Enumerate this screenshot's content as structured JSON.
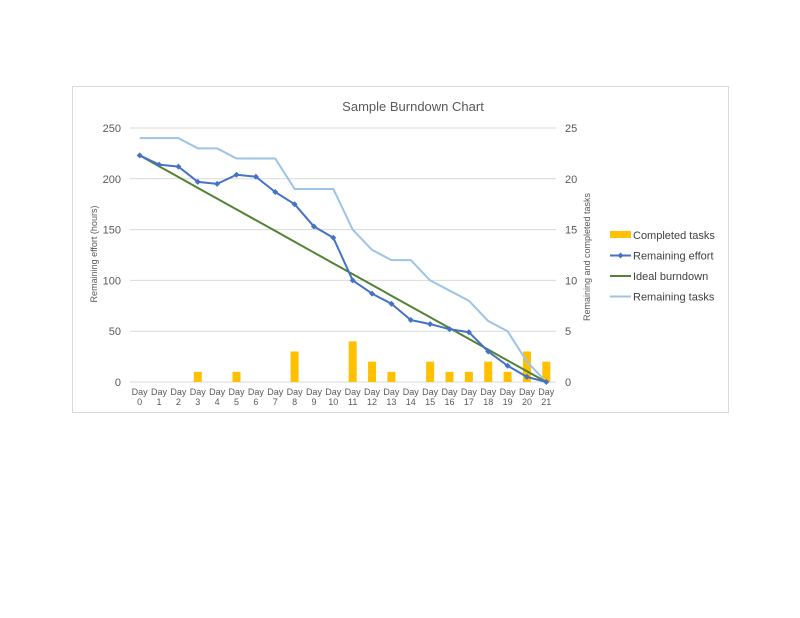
{
  "chart_data": {
    "type": "bar+line",
    "title": "Sample Burndown Chart",
    "categories": [
      "Day 0",
      "Day 1",
      "Day 2",
      "Day 3",
      "Day 4",
      "Day 5",
      "Day 6",
      "Day 7",
      "Day 8",
      "Day 9",
      "Day 10",
      "Day 11",
      "Day 12",
      "Day 13",
      "Day 14",
      "Day 15",
      "Day 16",
      "Day 17",
      "Day 18",
      "Day 19",
      "Day 20",
      "Day 21"
    ],
    "ylabel": "Remaining effort (hours)",
    "ylim": [
      0,
      250
    ],
    "yticks": [
      0,
      50,
      100,
      150,
      200,
      250
    ],
    "y2label": "Remaining and completed tasks",
    "y2lim": [
      0,
      25
    ],
    "y2ticks": [
      0,
      5,
      10,
      15,
      20,
      25
    ],
    "grid": true,
    "legend_position": "right",
    "series": [
      {
        "name": "Completed tasks",
        "type": "bar",
        "axis": "secondary",
        "color": "#ffc000",
        "values": [
          0,
          0,
          0,
          1,
          0,
          1,
          0,
          0,
          3,
          0,
          0,
          4,
          2,
          1,
          0,
          2,
          1,
          1,
          2,
          1,
          3,
          2
        ]
      },
      {
        "name": "Remaining effort",
        "type": "line",
        "axis": "primary",
        "color": "#4472c4",
        "marker": "diamond",
        "values": [
          223,
          214,
          212,
          197,
          195,
          204,
          202,
          187,
          175,
          153,
          142,
          100,
          87,
          77,
          61,
          57,
          52,
          49,
          30,
          16,
          5,
          0
        ]
      },
      {
        "name": "Ideal burndown",
        "type": "line",
        "axis": "primary",
        "color": "#548235",
        "values": [
          223,
          212.4,
          201.8,
          191.1,
          180.5,
          169.9,
          159.3,
          148.7,
          138,
          127.4,
          116.8,
          106.2,
          95.6,
          84.9,
          74.3,
          63.7,
          53.1,
          42.5,
          31.9,
          21.2,
          10.6,
          0
        ]
      },
      {
        "name": "Remaining tasks",
        "type": "line",
        "axis": "secondary",
        "color": "#9dc3e6",
        "values": [
          24,
          24,
          24,
          23,
          23,
          22,
          22,
          22,
          19,
          19,
          19,
          15,
          13,
          12,
          12,
          10,
          9,
          8,
          6,
          5,
          2,
          0
        ]
      }
    ]
  }
}
